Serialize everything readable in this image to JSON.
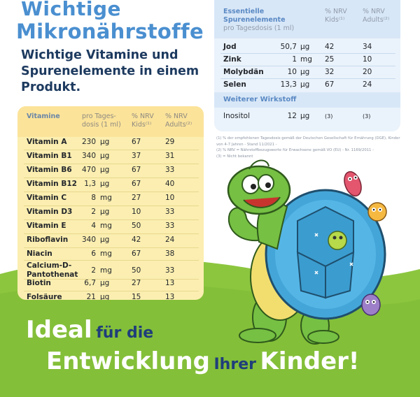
{
  "title": {
    "line1": "Wichtige",
    "line2": "Mikronährstoffe",
    "subtitle": "Wichtige Vitamine und Spurenelemente in einem Produkt."
  },
  "vitamins": {
    "header": {
      "name": "Vitamine",
      "dose": "pro Tages-\ndosis (1 ml)",
      "kids": "% NRV\nKids⁽¹⁾",
      "adults": "% NRV\nAdults⁽²⁾"
    },
    "rows": [
      {
        "name": "Vitamin A",
        "qty": "230",
        "unit": "µg",
        "kids": "67",
        "adults": "29"
      },
      {
        "name": "Vitamin B1",
        "qty": "340",
        "unit": "µg",
        "kids": "37",
        "adults": "31"
      },
      {
        "name": "Vitamin B6",
        "qty": "470",
        "unit": "µg",
        "kids": "67",
        "adults": "33"
      },
      {
        "name": "Vitamin B12",
        "qty": "1,3",
        "unit": "µg",
        "kids": "67",
        "adults": "40"
      },
      {
        "name": "Vitamin C",
        "qty": "8",
        "unit": "mg",
        "kids": "27",
        "adults": "10"
      },
      {
        "name": "Vitamin D3",
        "qty": "2",
        "unit": "µg",
        "kids": "10",
        "adults": "33"
      },
      {
        "name": "Vitamin E",
        "qty": "4",
        "unit": "mg",
        "kids": "50",
        "adults": "33"
      },
      {
        "name": "Riboflavin",
        "qty": "340",
        "unit": "µg",
        "kids": "42",
        "adults": "24"
      },
      {
        "name": "Niacin",
        "qty": "6",
        "unit": "mg",
        "kids": "67",
        "adults": "38"
      },
      {
        "name": "Calcium-D-\nPantothenat",
        "qty": "2",
        "unit": "mg",
        "kids": "50",
        "adults": "33"
      },
      {
        "name": "Biotin",
        "qty": "6,7",
        "unit": "µg",
        "kids": "27",
        "adults": "13"
      },
      {
        "name": "Folsäure",
        "qty": "21",
        "unit": "µg",
        "kids": "15",
        "adults": "13"
      }
    ]
  },
  "minerals": {
    "header": {
      "name": "Essentielle\nSpurenelemente",
      "dose": "pro Tagesdosis (1 ml)",
      "kids": "% NRV\nKids⁽¹⁾",
      "adults": "% NRV\nAdults⁽²⁾"
    },
    "rows": [
      {
        "name": "Jod",
        "qty": "50,7",
        "unit": "µg",
        "kids": "42",
        "adults": "34"
      },
      {
        "name": "Zink",
        "qty": "1",
        "unit": "mg",
        "kids": "25",
        "adults": "10"
      },
      {
        "name": "Molybdän",
        "qty": "10",
        "unit": "µg",
        "kids": "32",
        "adults": "20"
      },
      {
        "name": "Selen",
        "qty": "13,3",
        "unit": "µg",
        "kids": "67",
        "adults": "24"
      }
    ],
    "further_label": "Weiterer Wirkstoff",
    "further_row": {
      "name": "Inositol",
      "qty": "12",
      "unit": "µg",
      "kids": "(3)",
      "adults": "(3)"
    }
  },
  "footnotes": [
    "(1) % der empfohlenen Tagesdosis gemäß der Deutschen Gesellschaft für Ernährung (DGE), Kinder von 4-7 Jahren - Stand 11/2021 -",
    "(2) % NRV = Nährstoffbezugswerte für Erwachsene gemäß VO (EU) - Nr. 1169/2011 -",
    "(3) = Nicht bekannt"
  ],
  "slogan": {
    "w1": "Ideal",
    "w2": "für die",
    "w3": "Entwicklung",
    "w4": "Ihrer",
    "w5": "Kinder!"
  },
  "colors": {
    "title_blue": "#4a8fd0",
    "navy": "#1d3a5f",
    "meadow_green": "#8cc63f",
    "vitamin_panel": "#fbeeb0",
    "mineral_panel": "#eaf2fb"
  },
  "icons": [
    "turtle-mascot",
    "germ-icon"
  ]
}
